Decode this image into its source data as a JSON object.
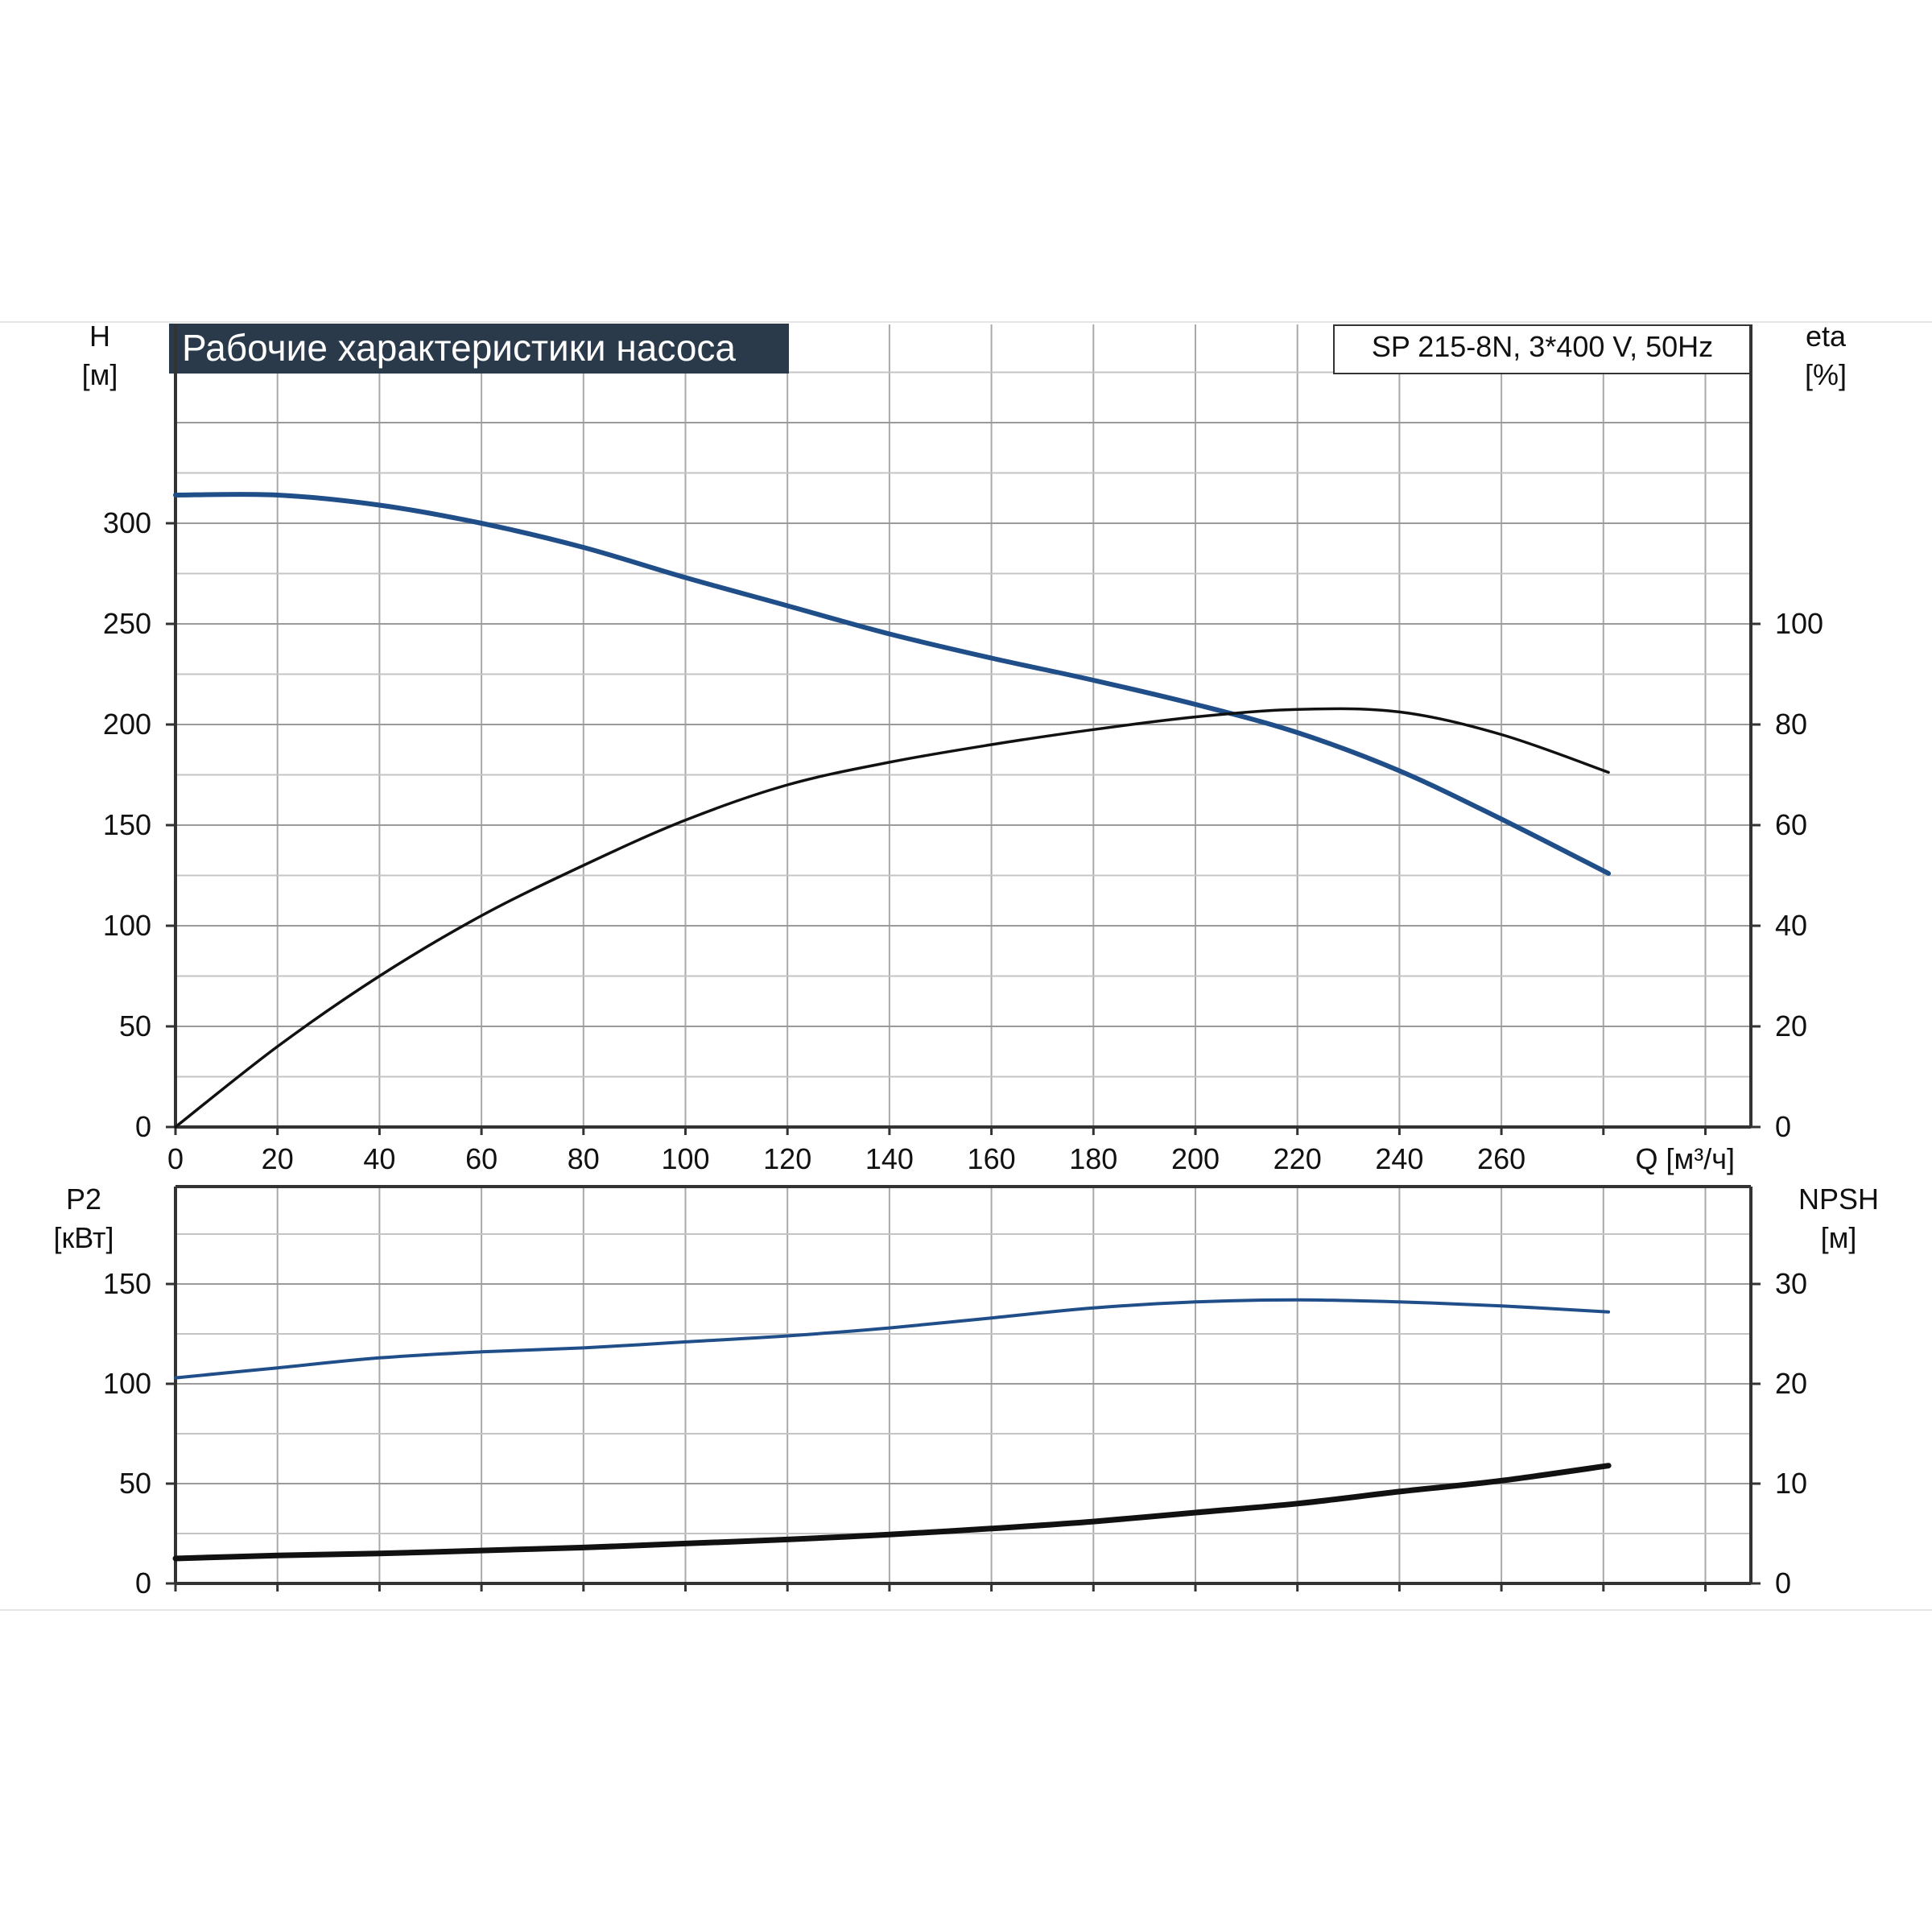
{
  "title": "Рабочие характеристики насоса",
  "model": "SP 215-8N, 3*400 V, 50Hz",
  "colors": {
    "blue": "#1f4e89",
    "black": "#111111",
    "grid": "#a9a9a9",
    "title_bg": "#2b3a4a"
  },
  "chart_data": [
    {
      "type": "line",
      "title": "Рабочие характеристики насоса",
      "subtitle": "SP 215-8N, 3*400 V, 50Hz",
      "xlabel": "Q [м³/ч]",
      "ylabel": "H\n[м]",
      "y2label": "eta\n[%]",
      "x_ticks": [
        0,
        20,
        40,
        60,
        80,
        100,
        120,
        140,
        160,
        180,
        200,
        220,
        240,
        260
      ],
      "y_ticks": [
        0,
        50,
        100,
        150,
        200,
        250,
        300
      ],
      "y2_ticks": [
        0,
        20,
        40,
        60,
        80,
        100
      ],
      "xlim": [
        0,
        310
      ],
      "ylim": [
        0,
        400
      ],
      "y2lim": [
        0,
        160
      ],
      "grid": true,
      "series": [
        {
          "name": "H",
          "axis": "left",
          "color": "#1f4e89",
          "x": [
            0,
            20,
            40,
            60,
            80,
            100,
            120,
            140,
            160,
            180,
            200,
            220,
            240,
            260,
            281
          ],
          "y": [
            314,
            314,
            309,
            300,
            288,
            273,
            259,
            245,
            233,
            222,
            210,
            196,
            177,
            153,
            126
          ]
        },
        {
          "name": "eta",
          "axis": "right",
          "color": "#111111",
          "x": [
            0,
            20,
            40,
            60,
            80,
            100,
            120,
            140,
            160,
            180,
            200,
            220,
            240,
            260,
            281
          ],
          "y": [
            0,
            16,
            30,
            42,
            52,
            61,
            68,
            72.5,
            76,
            79,
            81.5,
            83,
            82.5,
            78,
            70.5
          ]
        }
      ]
    },
    {
      "type": "line",
      "xlabel": "",
      "ylabel": "P2\n[кВт]",
      "y2label": "NPSH\n[м]",
      "y_ticks": [
        0,
        50,
        100,
        150
      ],
      "y2_ticks": [
        0,
        10,
        20,
        30
      ],
      "xlim": [
        0,
        310
      ],
      "ylim": [
        0,
        200
      ],
      "y2lim": [
        0,
        40
      ],
      "grid": true,
      "series": [
        {
          "name": "P2",
          "axis": "left",
          "color": "#1f4e89",
          "x": [
            0,
            20,
            40,
            60,
            80,
            100,
            120,
            140,
            160,
            180,
            200,
            220,
            240,
            260,
            281
          ],
          "y": [
            103,
            108,
            113,
            116,
            118,
            121,
            124,
            128,
            133,
            138,
            141,
            142,
            141,
            139,
            136
          ]
        },
        {
          "name": "NPSH",
          "axis": "right",
          "color": "#111111",
          "x": [
            0,
            20,
            40,
            60,
            80,
            100,
            120,
            140,
            160,
            180,
            200,
            220,
            240,
            260,
            281
          ],
          "y": [
            2.5,
            2.8,
            3.0,
            3.3,
            3.6,
            4.0,
            4.4,
            4.9,
            5.5,
            6.2,
            7.1,
            8.0,
            9.2,
            10.3,
            11.8
          ]
        }
      ]
    }
  ]
}
